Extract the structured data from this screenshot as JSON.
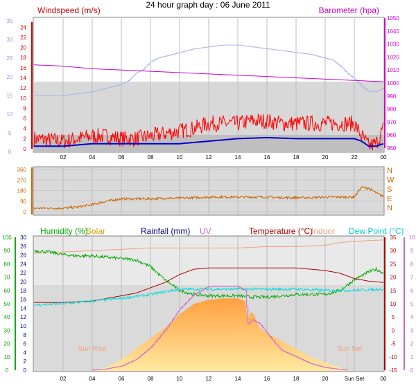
{
  "title": "24 hour graph day : 06 June 2011",
  "colors": {
    "wind": "#ff0000",
    "gust": "#ff0000",
    "avg": "#0000cc",
    "baro": "#cc00cc",
    "temp_axis": "#3355cc",
    "winddir": "#cc6600",
    "humidity": "#00aa00",
    "solar": "#ffbb55",
    "rainfall": "#000080",
    "uv": "#cc66cc",
    "temperature": "#aa0000",
    "indoor": "#f0a080",
    "dewpoint": "#00dddd",
    "panel_bg": "#dddddd",
    "grid": "#bbbbbb"
  },
  "chart_data": [
    {
      "type": "line",
      "id": "wind-baro",
      "legend": {
        "left": "Windspeed (m/s)",
        "right": "Barometer (hpa)"
      },
      "y_left_ticks": [
        "0",
        "2",
        "4",
        "6",
        "8",
        "10",
        "12",
        "14",
        "16",
        "18",
        "20",
        "22",
        "24"
      ],
      "y_left2_ticks": [
        "0",
        "5",
        "10",
        "15",
        "20",
        "25",
        "30",
        "35"
      ],
      "y_right_ticks": [
        "950",
        "960",
        "970",
        "980",
        "990",
        "1000",
        "1010",
        "1020",
        "1030",
        "1040",
        "1050"
      ],
      "x_ticks": [
        "02",
        "04",
        "06",
        "08",
        "10",
        "12",
        "14",
        "16",
        "18",
        "20",
        "22",
        "00"
      ],
      "ylim_left": [
        0,
        25
      ],
      "ylim_left2": [
        0,
        35
      ],
      "ylim_right": [
        950,
        1050
      ],
      "series": [
        {
          "key": "secondary",
          "axis": "left2",
          "x": [
            0,
            2,
            4,
            5,
            6,
            6.5,
            7,
            7.5,
            8,
            8.5,
            9,
            9.5,
            10,
            10.5,
            11,
            12,
            13,
            14,
            15,
            16,
            17,
            18,
            19,
            20,
            20.5,
            21,
            21.5,
            22,
            22.5,
            23,
            23.5,
            24
          ],
          "values": [
            15,
            15,
            16,
            17,
            18,
            19,
            21,
            22,
            24,
            25,
            25.5,
            26,
            26.5,
            27,
            27.5,
            28,
            28.5,
            28.5,
            28,
            27.5,
            27,
            26.5,
            26,
            25,
            24.5,
            23,
            21,
            19.5,
            17.5,
            16,
            16,
            17
          ]
        },
        {
          "key": "baro",
          "axis": "right",
          "x": [
            0,
            2,
            4,
            6,
            8,
            10,
            12,
            14,
            16,
            18,
            20,
            22,
            24
          ],
          "values": [
            1014,
            1013,
            1011,
            1010,
            1009,
            1008,
            1007,
            1006,
            1005,
            1004,
            1003,
            1002,
            1001
          ]
        },
        {
          "key": "wind",
          "axis": "left",
          "noise": 1.6,
          "x": [
            0,
            2,
            3,
            4,
            5,
            6,
            7,
            8,
            9,
            10,
            11,
            12,
            13,
            14,
            15,
            16,
            17,
            18,
            19,
            20,
            21,
            22,
            22.5,
            23,
            23.5,
            24
          ],
          "values": [
            2,
            1.5,
            2,
            2.5,
            2.5,
            2,
            2,
            2.5,
            3,
            3.5,
            4,
            5,
            5,
            5,
            5.5,
            5.5,
            5,
            5,
            5,
            5,
            5,
            5,
            2.5,
            0.5,
            1,
            4
          ]
        },
        {
          "key": "avg",
          "axis": "left",
          "x": [
            0,
            2,
            4,
            6,
            8,
            10,
            12,
            14,
            16,
            18,
            20,
            22,
            22.5,
            23,
            23.5,
            24
          ],
          "values": [
            0.5,
            0.5,
            1,
            1,
            1,
            1,
            1.5,
            2,
            2.2,
            2,
            2,
            2,
            1.5,
            0.5,
            0.5,
            1
          ]
        }
      ]
    },
    {
      "type": "line",
      "id": "winddir",
      "y_left_ticks": [
        "0",
        "90",
        "180",
        "270",
        "360"
      ],
      "y_right_labels": [
        "N",
        "W",
        "S",
        "E",
        "N"
      ],
      "ylim": [
        0,
        360
      ],
      "series": [
        {
          "key": "winddir",
          "noise": 10,
          "x": [
            0,
            2,
            3,
            4,
            5,
            6,
            7,
            8,
            9,
            10,
            11,
            12,
            13,
            14,
            15,
            16,
            17,
            18,
            19,
            20,
            21,
            22,
            22.5,
            23,
            23.5,
            24
          ],
          "values": [
            30,
            30,
            40,
            60,
            90,
            110,
            110,
            110,
            115,
            115,
            120,
            125,
            125,
            125,
            125,
            125,
            120,
            120,
            120,
            125,
            125,
            125,
            210,
            200,
            160,
            130
          ]
        }
      ]
    },
    {
      "type": "line",
      "id": "multi",
      "legend": [
        "Humidity (%)",
        "Solar",
        "Rainfall (mm)",
        "UV",
        "Temperature (°C)",
        "Indoor",
        "Dew Point (°C)"
      ],
      "y_hum_ticks": [
        "0",
        "10",
        "20",
        "30",
        "40",
        "50",
        "60",
        "70",
        "80",
        "90",
        "100"
      ],
      "y_rain_ticks": [
        "0",
        "2",
        "4",
        "6",
        "8",
        "10",
        "12",
        "14",
        "16",
        "18",
        "20",
        "22",
        "24",
        "26",
        "28",
        "30"
      ],
      "y_temp_ticks": [
        "-15",
        "-10",
        "-5",
        "0",
        "5",
        "10",
        "15",
        "20",
        "25",
        "30",
        "35"
      ],
      "y_uv_ticks": [
        "0",
        "1",
        "2",
        "3",
        "4",
        "5",
        "6",
        "7",
        "8",
        "9",
        "10"
      ],
      "x_ticks": [
        "02",
        "04",
        "06",
        "08",
        "10",
        "12",
        "14",
        "16",
        "18",
        "20",
        "Sun Set",
        "00"
      ],
      "annotations": {
        "sunrise": "Sun Rise",
        "sunset": "Sun Set",
        "sunrise_x": 4,
        "sunset_x": 21.5
      },
      "ylim_temp": [
        -15,
        35
      ],
      "ylim_uv": [
        0,
        10
      ],
      "ylim_hum": [
        0,
        100
      ],
      "series": [
        {
          "key": "solar",
          "axis": "temp",
          "x": [
            4,
            5,
            6,
            7,
            8,
            9,
            10,
            11,
            12,
            13,
            14,
            14.5,
            14.7,
            14.9,
            15.1,
            15.5,
            16,
            17,
            18,
            19,
            20,
            21,
            21.5
          ],
          "values": [
            -15,
            -14,
            -11,
            -7,
            -3,
            1,
            6,
            10,
            11.5,
            12,
            12,
            11,
            4,
            7,
            6,
            1,
            -1,
            -4,
            -7,
            -10,
            -12,
            -14,
            -15
          ]
        },
        {
          "key": "indoor",
          "axis": "temp",
          "x": [
            0,
            2,
            4,
            6,
            8,
            10,
            12,
            14,
            16,
            18,
            20,
            21,
            22,
            24
          ],
          "values": [
            29,
            29.5,
            30,
            30.5,
            31,
            31,
            31,
            31,
            31.5,
            31.5,
            32,
            33,
            33.5,
            34
          ]
        },
        {
          "key": "humidity",
          "axis": "hum",
          "noise": 1.2,
          "x": [
            0,
            1,
            2,
            3,
            4,
            5,
            6,
            7,
            8,
            8.5,
            9,
            9.5,
            10,
            11,
            12,
            13,
            14,
            15,
            16,
            17,
            18,
            19,
            20,
            21,
            22,
            23,
            23.5,
            24
          ],
          "values": [
            90,
            89,
            87,
            86,
            86,
            85,
            84,
            83,
            78,
            73,
            68,
            64,
            60,
            57,
            56,
            56,
            56,
            55,
            55,
            56,
            57,
            57,
            57,
            60,
            68,
            74,
            76,
            73
          ]
        },
        {
          "key": "temperature",
          "axis": "temp",
          "x": [
            0,
            2,
            4,
            5,
            6,
            7,
            8,
            9,
            10,
            11,
            12,
            14,
            16,
            18,
            19,
            20,
            21,
            22,
            23,
            24
          ],
          "values": [
            10.5,
            10.5,
            11,
            12,
            13,
            14,
            16,
            18,
            21,
            23,
            23.5,
            23.5,
            23.5,
            23.5,
            23,
            22.5,
            21.5,
            19.5,
            18.5,
            18
          ]
        },
        {
          "key": "dewpoint",
          "axis": "temp",
          "noise": 0.5,
          "x": [
            0,
            2,
            4,
            6,
            8,
            10,
            12,
            14,
            16,
            18,
            20,
            22,
            24
          ],
          "values": [
            9.5,
            10,
            11,
            12,
            13.5,
            15.5,
            15.5,
            15.5,
            15.5,
            15.5,
            15,
            15,
            15.5
          ]
        },
        {
          "key": "uv",
          "axis": "uv",
          "step": true,
          "x": [
            4,
            5,
            6,
            7,
            8,
            9,
            10,
            11,
            12,
            13,
            14,
            14.5,
            14.7,
            15,
            15.5,
            16,
            16.5,
            17,
            18,
            19,
            20,
            21.5
          ],
          "values": [
            0,
            0.1,
            0.3,
            0.8,
            1.7,
            3,
            4.6,
            5.7,
            6.3,
            6.3,
            6.3,
            6,
            3.5,
            3.8,
            3.5,
            2.8,
            2.1,
            1.5,
            1,
            0.5,
            0.2,
            0
          ]
        }
      ]
    }
  ]
}
